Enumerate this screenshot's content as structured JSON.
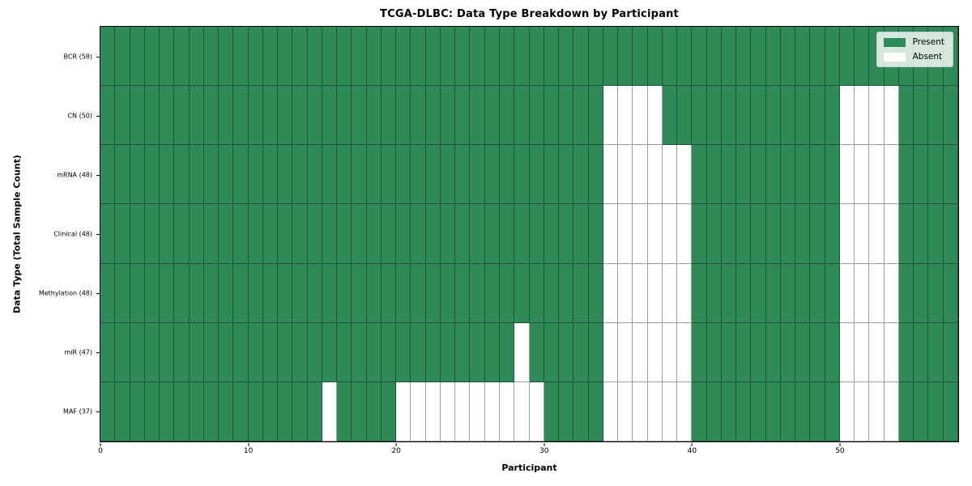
{
  "chart_data": {
    "type": "heatmap",
    "title": "TCGA-DLBC: Data Type Breakdown by Participant",
    "xlabel": "Participant",
    "ylabel": "Data Type (Total Sample Count)",
    "n_participants": 58,
    "x_ticks": [
      0,
      10,
      20,
      30,
      40,
      50
    ],
    "present_color": "#2e8b57",
    "absent_color": "#ffffff",
    "legend_position": "upper right",
    "grid": true,
    "legend": [
      {
        "label": "Present",
        "color": "#2e8b57"
      },
      {
        "label": "Absent",
        "color": "#ffffff"
      }
    ],
    "rows": [
      {
        "label": "BCR (58)",
        "name": "BCR",
        "present_count": 58,
        "absent_participants": []
      },
      {
        "label": "CN (50)",
        "name": "CN",
        "present_count": 50,
        "absent_participants": [
          34,
          35,
          36,
          37,
          50,
          51,
          52,
          53
        ]
      },
      {
        "label": "mRNA (48)",
        "name": "mRNA",
        "present_count": 48,
        "absent_participants": [
          34,
          35,
          36,
          37,
          38,
          39,
          50,
          51,
          52,
          53
        ]
      },
      {
        "label": "Clinical (48)",
        "name": "Clinical",
        "present_count": 48,
        "absent_participants": [
          34,
          35,
          36,
          37,
          38,
          39,
          50,
          51,
          52,
          53
        ]
      },
      {
        "label": "Methylation (48)",
        "name": "Methylation",
        "present_count": 48,
        "absent_participants": [
          34,
          35,
          36,
          37,
          38,
          39,
          50,
          51,
          52,
          53
        ]
      },
      {
        "label": "miR (47)",
        "name": "miR",
        "present_count": 47,
        "absent_participants": [
          28,
          34,
          35,
          36,
          37,
          38,
          39,
          50,
          51,
          52,
          53
        ]
      },
      {
        "label": "MAF (37)",
        "name": "MAF",
        "present_count": 37,
        "absent_participants": [
          15,
          20,
          21,
          22,
          23,
          24,
          25,
          26,
          27,
          28,
          29,
          34,
          35,
          36,
          37,
          38,
          39,
          50,
          51,
          52,
          53
        ]
      }
    ]
  }
}
